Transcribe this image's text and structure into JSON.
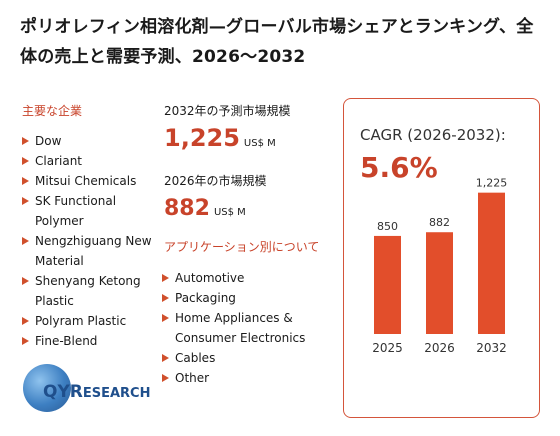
{
  "title": "ポリオレフィン相溶化剤—グローバル市場シェアとランキング、全体の売上と需要予測、2026～2032",
  "companies": {
    "label": "主要な企業",
    "items": [
      "Dow",
      "Clariant",
      "Mitsui Chemicals",
      "SK Functional Polymer",
      "Nengzhiguang New Material",
      "Shenyang Ketong Plastic",
      "Polyram Plastic",
      "Fine-Blend"
    ]
  },
  "market_2032": {
    "caption": "2032年の予測市場規模",
    "value": "1,225",
    "unit": "US$ M"
  },
  "market_2026": {
    "caption": "2026年の市場規模",
    "value": "882",
    "unit": "US$ M"
  },
  "applications": {
    "label": "アプリケーション別について",
    "items": [
      "Automotive",
      "Packaging",
      "Home Appliances & Consumer Electronics",
      "Cables",
      "Other"
    ]
  },
  "cagr": {
    "label": "CAGR (2026-2032):",
    "value": "5.6%"
  },
  "logo": {
    "text": "QYRESEARCH"
  },
  "colors": {
    "accent": "#c8432a",
    "bar": "#e24e2b",
    "brand_blue": "#1f4f8c"
  },
  "chart_data": {
    "type": "bar",
    "categories": [
      "2025",
      "2026",
      "2032"
    ],
    "values": [
      850,
      882,
      1225
    ],
    "data_labels": [
      "850",
      "882",
      "1,225"
    ],
    "title": "",
    "xlabel": "",
    "ylabel": ""
  }
}
